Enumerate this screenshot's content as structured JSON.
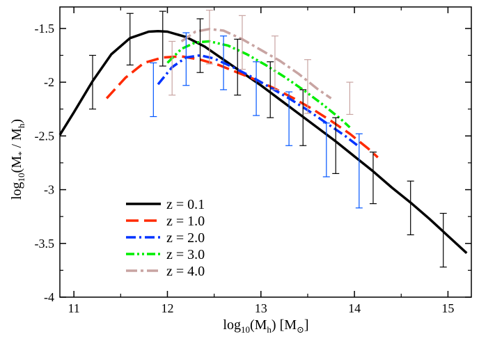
{
  "chart_data": {
    "type": "line",
    "xlabel": {
      "base": "log",
      "sub": "10",
      "open": "(M",
      "hsub": "h",
      "close": ") [M",
      "sun": "⊙",
      "end": "]"
    },
    "ylabel": {
      "base": "log",
      "sub": "10",
      "open": "(M",
      "starsub": "*",
      "mid": " / M",
      "hsub": "h",
      "close": ")"
    },
    "xlim": [
      10.85,
      15.25
    ],
    "ylim": [
      -4.0,
      -1.3
    ],
    "xticks": [
      "11",
      "12",
      "13",
      "14",
      "15"
    ],
    "xtick_values": [
      11,
      12,
      13,
      14,
      15
    ],
    "yticks": [
      "-1.5",
      "-2",
      "-2.5",
      "-3",
      "-3.5",
      "-4"
    ],
    "ytick_values": [
      -1.5,
      -2.0,
      -2.5,
      -3.0,
      -3.5,
      -4.0
    ],
    "legend_position": "bottom-left",
    "series": [
      {
        "name": "z = 0.1",
        "color": "#000000",
        "style": "solid",
        "x": [
          10.85,
          11.0,
          11.2,
          11.4,
          11.6,
          11.8,
          11.9,
          12.0,
          12.2,
          12.4,
          12.6,
          12.8,
          13.0,
          13.2,
          13.4,
          13.6,
          13.8,
          14.0,
          14.2,
          14.4,
          14.6,
          14.8,
          15.0,
          15.2
        ],
        "y": [
          -2.49,
          -2.28,
          -1.99,
          -1.74,
          -1.59,
          -1.53,
          -1.525,
          -1.53,
          -1.58,
          -1.67,
          -1.79,
          -1.91,
          -2.03,
          -2.16,
          -2.29,
          -2.42,
          -2.55,
          -2.69,
          -2.83,
          -2.98,
          -3.12,
          -3.27,
          -3.43,
          -3.59
        ]
      },
      {
        "name": "z = 1.0",
        "color": "#ff2a00",
        "style": "dashed",
        "x": [
          11.35,
          11.55,
          11.75,
          11.95,
          12.15,
          12.35,
          12.55,
          12.75,
          12.95,
          13.15,
          13.35,
          13.55,
          13.75,
          13.95,
          14.15,
          14.25
        ],
        "y": [
          -2.15,
          -1.96,
          -1.82,
          -1.77,
          -1.76,
          -1.79,
          -1.84,
          -1.91,
          -1.98,
          -2.06,
          -2.15,
          -2.25,
          -2.36,
          -2.48,
          -2.62,
          -2.7
        ]
      },
      {
        "name": "z = 2.0",
        "color": "#0033ff",
        "style": "dash-dot",
        "x": [
          11.9,
          12.05,
          12.2,
          12.35,
          12.5,
          12.7,
          12.9,
          13.1,
          13.3,
          13.5,
          13.7,
          13.9,
          14.05
        ],
        "y": [
          -2.02,
          -1.86,
          -1.77,
          -1.75,
          -1.78,
          -1.86,
          -1.95,
          -2.05,
          -2.15,
          -2.26,
          -2.38,
          -2.5,
          -2.6
        ]
      },
      {
        "name": "z = 3.0",
        "color": "#00ee00",
        "style": "dash-dot-dot",
        "x": [
          12.0,
          12.15,
          12.3,
          12.45,
          12.65,
          12.85,
          13.05,
          13.25,
          13.45,
          13.65,
          13.85,
          13.95
        ],
        "y": [
          -1.82,
          -1.69,
          -1.63,
          -1.62,
          -1.66,
          -1.74,
          -1.84,
          -1.95,
          -2.07,
          -2.2,
          -2.34,
          -2.42
        ]
      },
      {
        "name": "z = 4.0",
        "color": "#c8a4a2",
        "style": "dash-dot-long",
        "x": [
          12.15,
          12.3,
          12.45,
          12.6,
          12.8,
          13.0,
          13.2,
          13.4,
          13.6,
          13.75
        ],
        "y": [
          -1.62,
          -1.53,
          -1.505,
          -1.52,
          -1.6,
          -1.7,
          -1.8,
          -1.92,
          -2.06,
          -2.15
        ]
      }
    ],
    "error_bars": [
      {
        "color": "#000000",
        "points": [
          {
            "x": 11.2,
            "y": -2.0,
            "lo": -2.25,
            "hi": -1.75
          },
          {
            "x": 11.6,
            "y": -1.6,
            "lo": -1.84,
            "hi": -1.36
          },
          {
            "x": 11.95,
            "y": -1.6,
            "lo": -1.85,
            "hi": -1.34
          },
          {
            "x": 12.35,
            "y": -1.66,
            "lo": -1.91,
            "hi": -1.41
          },
          {
            "x": 12.75,
            "y": -1.86,
            "lo": -2.12,
            "hi": -1.6
          },
          {
            "x": 13.1,
            "y": -2.07,
            "lo": -2.33,
            "hi": -1.81
          },
          {
            "x": 13.45,
            "y": -2.33,
            "lo": -2.59,
            "hi": -2.07
          },
          {
            "x": 13.8,
            "y": -2.59,
            "lo": -2.85,
            "hi": -2.33
          },
          {
            "x": 14.2,
            "y": -2.89,
            "lo": -3.13,
            "hi": -2.65
          },
          {
            "x": 14.6,
            "y": -3.17,
            "lo": -3.42,
            "hi": -2.92
          },
          {
            "x": 14.95,
            "y": -3.47,
            "lo": -3.72,
            "hi": -3.22
          }
        ]
      },
      {
        "color": "#0055ff",
        "points": [
          {
            "x": 11.85,
            "y": -2.07,
            "lo": -2.32,
            "hi": -1.82
          },
          {
            "x": 12.2,
            "y": -1.78,
            "lo": -2.03,
            "hi": -1.54
          },
          {
            "x": 12.6,
            "y": -1.82,
            "lo": -2.07,
            "hi": -1.57
          },
          {
            "x": 12.95,
            "y": -2.06,
            "lo": -2.31,
            "hi": -1.81
          },
          {
            "x": 13.3,
            "y": -2.34,
            "lo": -2.59,
            "hi": -2.09
          },
          {
            "x": 13.7,
            "y": -2.63,
            "lo": -2.88,
            "hi": -2.38
          },
          {
            "x": 14.05,
            "y": -2.92,
            "lo": -3.17,
            "hi": -2.48
          }
        ]
      },
      {
        "color": "#c8a4a2",
        "points": [
          {
            "x": 12.05,
            "y": -1.87,
            "lo": -2.12,
            "hi": -1.62
          },
          {
            "x": 12.45,
            "y": -1.58,
            "lo": -1.83,
            "hi": -1.33
          },
          {
            "x": 12.8,
            "y": -1.63,
            "lo": -1.88,
            "hi": -1.38
          },
          {
            "x": 13.15,
            "y": -1.82,
            "lo": -2.07,
            "hi": -1.57
          },
          {
            "x": 13.5,
            "y": -2.04,
            "lo": -2.29,
            "hi": -1.79
          },
          {
            "x": 13.95,
            "y": -2.15,
            "lo": -2.3,
            "hi": -2.0
          }
        ]
      }
    ]
  }
}
